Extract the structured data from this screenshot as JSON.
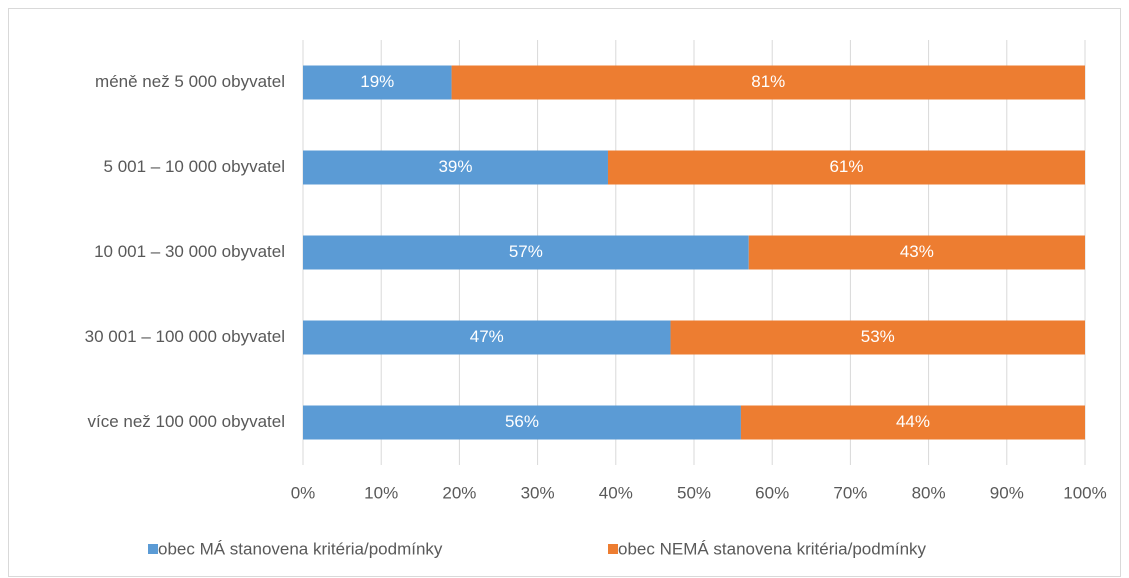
{
  "chart_data": {
    "type": "stacked-bar-horizontal",
    "categories": [
      "méně než 5 000 obyvatel",
      "5 001 – 10 000 obyvatel",
      "10 001 – 30 000 obyvatel",
      "30 001 – 100 000 obyvatel",
      "více než 100 000 obyvatel"
    ],
    "series": [
      {
        "name": "obec MÁ stanovena kritéria/podmínky",
        "color": "#5b9bd5",
        "values": [
          19,
          39,
          57,
          47,
          56
        ],
        "value_labels": [
          "19%",
          "39%",
          "57%",
          "47%",
          "56%"
        ]
      },
      {
        "name": "obec NEMÁ stanovena kritéria/podmínky",
        "color": "#ed7d31",
        "values": [
          81,
          61,
          43,
          53,
          44
        ],
        "value_labels": [
          "81%",
          "61%",
          "43%",
          "53%",
          "44%"
        ]
      }
    ],
    "xlim": [
      0,
      100
    ],
    "xticks": [
      {
        "value": 0,
        "label": "0%"
      },
      {
        "value": 10,
        "label": "10%"
      },
      {
        "value": 20,
        "label": "20%"
      },
      {
        "value": 30,
        "label": "30%"
      },
      {
        "value": 40,
        "label": "40%"
      },
      {
        "value": 50,
        "label": "50%"
      },
      {
        "value": 60,
        "label": "60%"
      },
      {
        "value": 70,
        "label": "70%"
      },
      {
        "value": 80,
        "label": "80%"
      },
      {
        "value": 90,
        "label": "90%"
      },
      {
        "value": 100,
        "label": "100%"
      }
    ],
    "grid": true,
    "legend": "bottom"
  }
}
